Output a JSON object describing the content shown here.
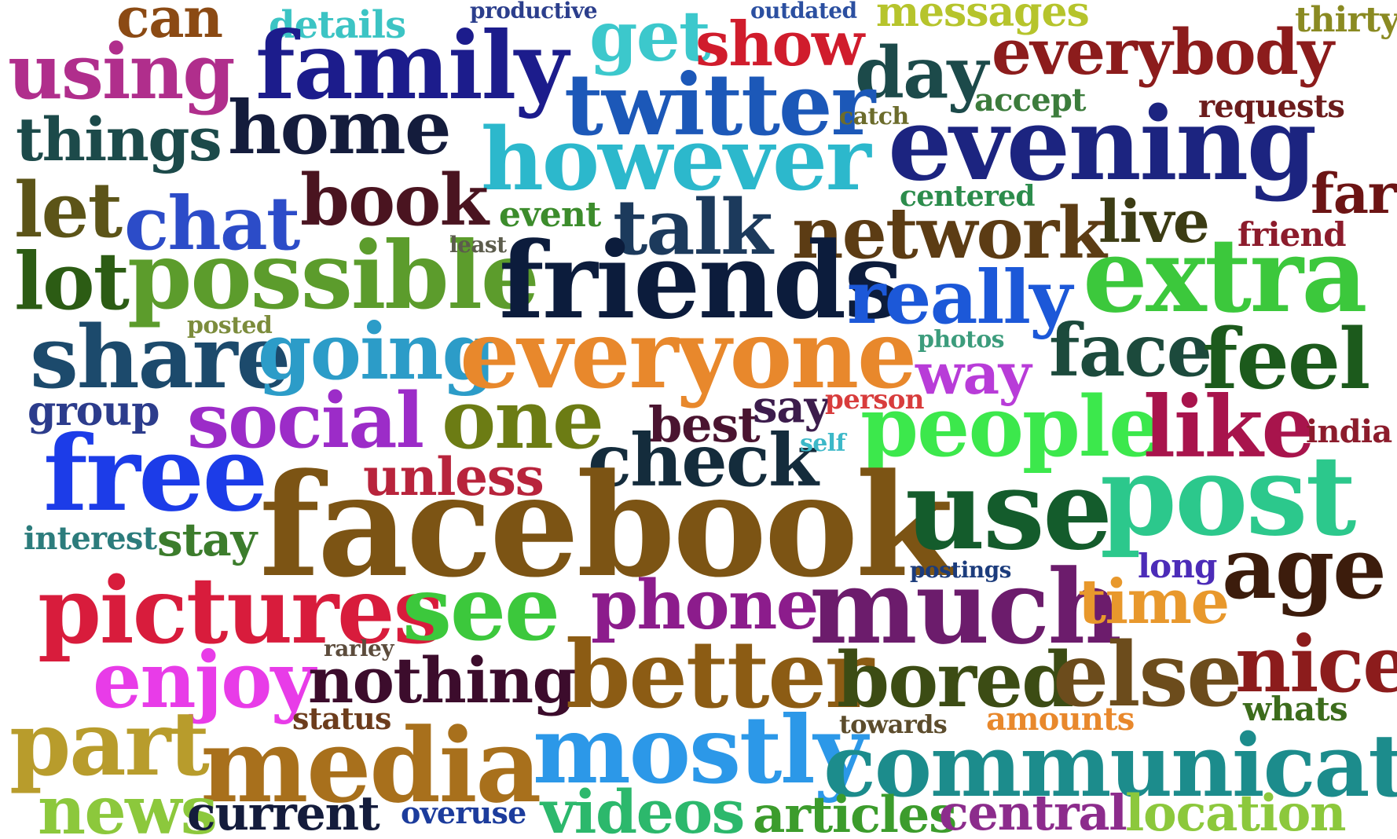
{
  "words": [
    {
      "text": "can",
      "color": "#8b4a14"
    },
    {
      "text": "details",
      "color": "#3cc4c4"
    },
    {
      "text": "productive",
      "color": "#2b3e8c"
    },
    {
      "text": "outdated",
      "color": "#2b4fa0"
    },
    {
      "text": "messages",
      "color": "#b6c42c"
    },
    {
      "text": "thirty",
      "color": "#8a8a22"
    },
    {
      "text": "using",
      "color": "#b02e8c"
    },
    {
      "text": "family",
      "color": "#1c1c8c"
    },
    {
      "text": "get",
      "color": "#3cc8cc"
    },
    {
      "text": "show",
      "color": "#d01c2c"
    },
    {
      "text": "day",
      "color": "#1c4a4a"
    },
    {
      "text": "everybody",
      "color": "#8c1c1c"
    },
    {
      "text": "twitter",
      "color": "#1c58b8"
    },
    {
      "text": "accept",
      "color": "#3c7c3c"
    },
    {
      "text": "requests",
      "color": "#6c1c1c"
    },
    {
      "text": "things",
      "color": "#1c4a4a"
    },
    {
      "text": "home",
      "color": "#141c3c"
    },
    {
      "text": "catch",
      "color": "#6c6c2c"
    },
    {
      "text": "however",
      "color": "#2cb8cc"
    },
    {
      "text": "evening",
      "color": "#1c2480"
    },
    {
      "text": "far",
      "color": "#6c1414"
    },
    {
      "text": "let",
      "color": "#5c5418"
    },
    {
      "text": "chat",
      "color": "#2c4cc8"
    },
    {
      "text": "book",
      "color": "#4a1420"
    },
    {
      "text": "event",
      "color": "#3c8c2c"
    },
    {
      "text": "centered",
      "color": "#2c8c4c"
    },
    {
      "text": "talk",
      "color": "#1c3a5c"
    },
    {
      "text": "network",
      "color": "#5c3c14"
    },
    {
      "text": "live",
      "color": "#3c3c14"
    },
    {
      "text": "friend",
      "color": "#8c1c2c"
    },
    {
      "text": "lot",
      "color": "#2c5c14"
    },
    {
      "text": "possible",
      "color": "#5c9c2c"
    },
    {
      "text": "least",
      "color": "#5c5c4c"
    },
    {
      "text": "friends",
      "color": "#0c1c3c"
    },
    {
      "text": "really",
      "color": "#1c58d8"
    },
    {
      "text": "extra",
      "color": "#3cc83c"
    },
    {
      "text": "posted",
      "color": "#7c8c3c"
    },
    {
      "text": "share",
      "color": "#1c4a6c"
    },
    {
      "text": "going",
      "color": "#2c9cc8"
    },
    {
      "text": "everyone",
      "color": "#e8882c"
    },
    {
      "text": "photos",
      "color": "#3c9c7c"
    },
    {
      "text": "way",
      "color": "#b83cd8"
    },
    {
      "text": "face",
      "color": "#1c4a3c"
    },
    {
      "text": "feel",
      "color": "#1c5a1c"
    },
    {
      "text": "group",
      "color": "#2c3c8c"
    },
    {
      "text": "social",
      "color": "#9c2cc8"
    },
    {
      "text": "one",
      "color": "#6c7c14"
    },
    {
      "text": "best",
      "color": "#4a1430"
    },
    {
      "text": "say",
      "color": "#3c1c4c"
    },
    {
      "text": "person",
      "color": "#d83c3c"
    },
    {
      "text": "people",
      "color": "#3ce84c"
    },
    {
      "text": "like",
      "color": "#a8144c"
    },
    {
      "text": "india",
      "color": "#8c1c2c"
    },
    {
      "text": "free",
      "color": "#1c3ce8"
    },
    {
      "text": "unless",
      "color": "#b8243c"
    },
    {
      "text": "check",
      "color": "#142c3c"
    },
    {
      "text": "self",
      "color": "#3cb8c8"
    },
    {
      "text": "facebook",
      "color": "#7c5414"
    },
    {
      "text": "use",
      "color": "#145c2c"
    },
    {
      "text": "post",
      "color": "#2cc88c"
    },
    {
      "text": "interest",
      "color": "#2c7c7c"
    },
    {
      "text": "stay",
      "color": "#3c7c2c"
    },
    {
      "text": "postings",
      "color": "#1c3c7c"
    },
    {
      "text": "long",
      "color": "#4c2cb8"
    },
    {
      "text": "age",
      "color": "#3c1c0c"
    },
    {
      "text": "pictures",
      "color": "#d81c3c"
    },
    {
      "text": "see",
      "color": "#3cc83c"
    },
    {
      "text": "phone",
      "color": "#8c1c8c"
    },
    {
      "text": "much",
      "color": "#6c1c6c"
    },
    {
      "text": "time",
      "color": "#e8982c"
    },
    {
      "text": "rarley",
      "color": "#5c4c3c"
    },
    {
      "text": "enjoy",
      "color": "#e83ce8"
    },
    {
      "text": "nothing",
      "color": "#3c0c2c"
    },
    {
      "text": "better",
      "color": "#8c5c14"
    },
    {
      "text": "bored",
      "color": "#3c4c14"
    },
    {
      "text": "else",
      "color": "#6c4c1c"
    },
    {
      "text": "nice",
      "color": "#8c1c1c"
    },
    {
      "text": "status",
      "color": "#6c3c1c"
    },
    {
      "text": "towards",
      "color": "#5c4c2c"
    },
    {
      "text": "amounts",
      "color": "#e8882c"
    },
    {
      "text": "whats",
      "color": "#3c6c1c"
    },
    {
      "text": "part",
      "color": "#b89c2c"
    },
    {
      "text": "media",
      "color": "#a8701c"
    },
    {
      "text": "mostly",
      "color": "#2c98e8"
    },
    {
      "text": "communicate",
      "color": "#1c8c8c"
    },
    {
      "text": "news",
      "color": "#8cc83c"
    },
    {
      "text": "current",
      "color": "#141c3c"
    },
    {
      "text": "overuse",
      "color": "#1c3c9c"
    },
    {
      "text": "videos",
      "color": "#2cb86c"
    },
    {
      "text": "articles",
      "color": "#3c9c2c"
    },
    {
      "text": "central",
      "color": "#8c2c8c"
    },
    {
      "text": "location",
      "color": "#8cc83c"
    }
  ]
}
